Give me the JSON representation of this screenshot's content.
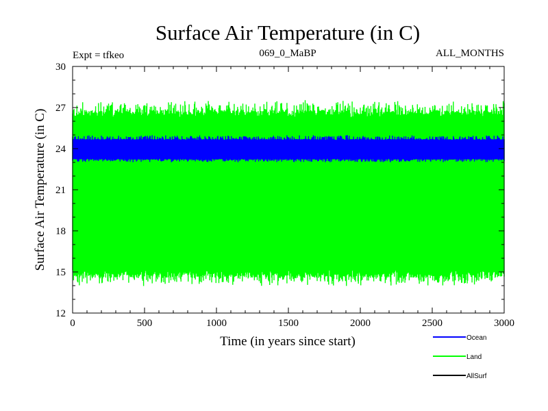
{
  "chart_data": {
    "type": "line",
    "title": "Surface Air Temperature (in C)",
    "subtitle_left": "Expt = tfkeo",
    "subtitle_center": "069_0_MaBP",
    "subtitle_right": "ALL_MONTHS",
    "xlabel": "Time (in years since start)",
    "ylabel": "Surface Air Temperature (in C)",
    "xlim": [
      0,
      3000
    ],
    "ylim": [
      12,
      30
    ],
    "x_ticks": [
      0,
      500,
      1000,
      1500,
      2000,
      2500,
      3000
    ],
    "y_ticks": [
      12,
      15,
      18,
      21,
      24,
      27,
      30
    ],
    "grid": false,
    "legend_position": "bottom-right",
    "series": [
      {
        "name": "Land",
        "color": "#00ff00",
        "mean": 20.8,
        "min": 13.9,
        "max": 27.6,
        "typical_low": 14.6,
        "typical_high": 26.8
      },
      {
        "name": "Ocean",
        "color": "#0000ff",
        "mean": 23.9,
        "min": 23.0,
        "max": 25.0,
        "typical_low": 23.2,
        "typical_high": 24.7
      },
      {
        "name": "AllSurf",
        "color": "#000000"
      }
    ]
  }
}
